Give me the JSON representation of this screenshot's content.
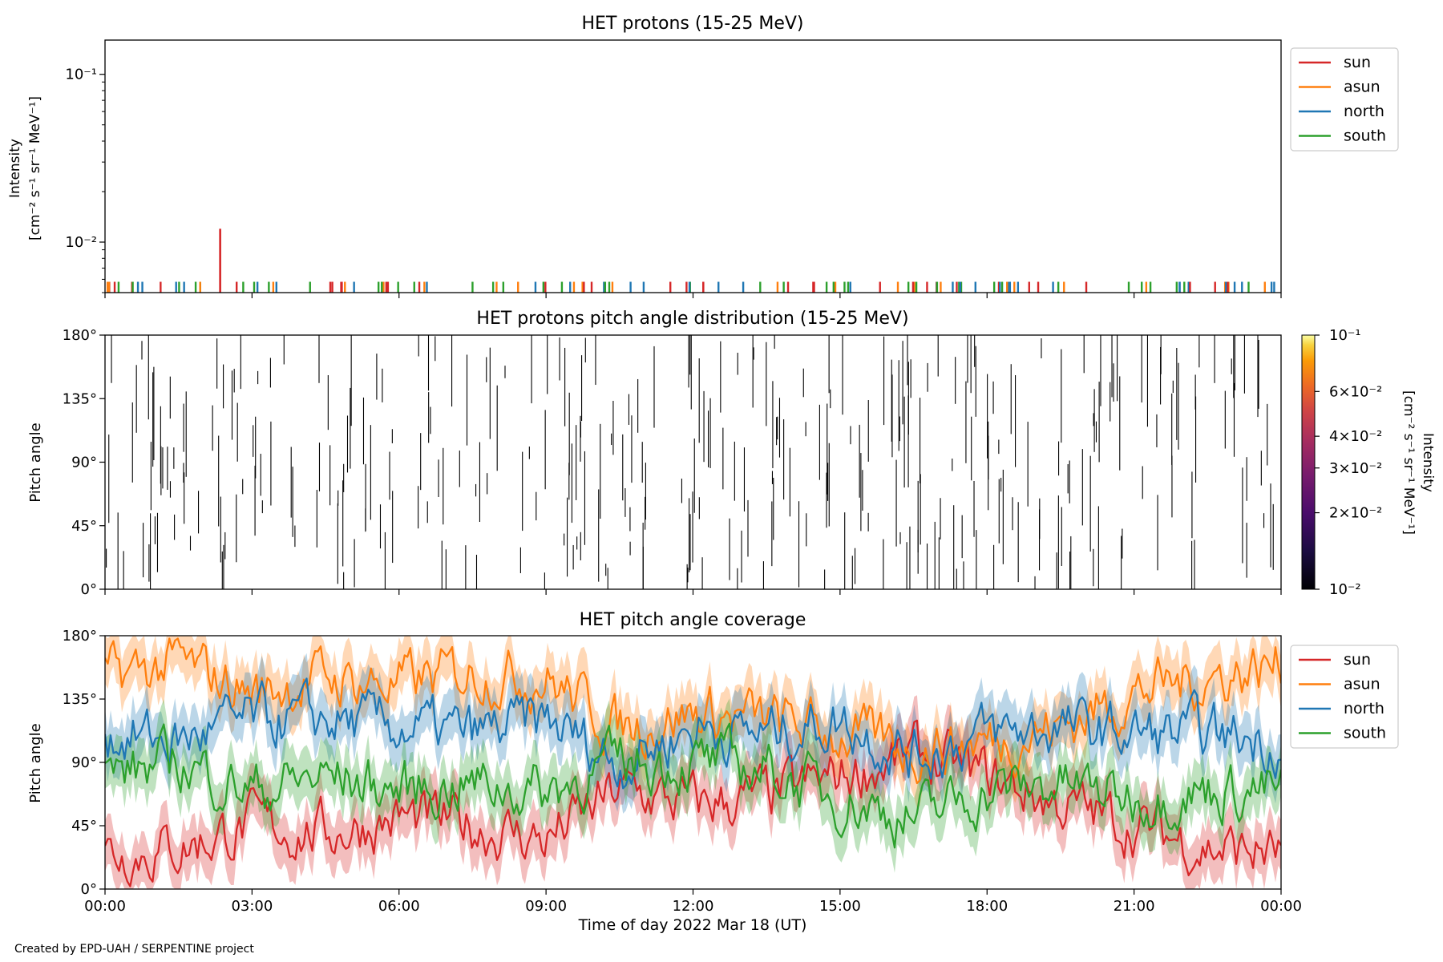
{
  "credit": "Created by EPD-UAH / SERPENTINE project",
  "colors": {
    "sun": "#d62728",
    "asun": "#ff7f0e",
    "north": "#1f77b4",
    "south": "#2ca02c"
  },
  "x_axis": {
    "label": "Time of day 2022 Mar 18 (UT)",
    "range_hours": [
      0,
      24
    ],
    "ticks": [
      {
        "hour": 0,
        "label": "00:00"
      },
      {
        "hour": 3,
        "label": "03:00"
      },
      {
        "hour": 6,
        "label": "06:00"
      },
      {
        "hour": 9,
        "label": "09:00"
      },
      {
        "hour": 12,
        "label": "12:00"
      },
      {
        "hour": 15,
        "label": "15:00"
      },
      {
        "hour": 18,
        "label": "18:00"
      },
      {
        "hour": 21,
        "label": "21:00"
      },
      {
        "hour": 24,
        "label": "00:00"
      }
    ]
  },
  "chart_data": [
    {
      "type": "line",
      "title": "HET protons (15-25 MeV)",
      "ylabel_line1": "Intensity",
      "ylabel_line2": "[cm⁻² s⁻¹ sr⁻¹ MeV⁻¹]",
      "yscale": "log",
      "ylim": [
        0.005,
        0.16
      ],
      "yticks": [
        {
          "value": 0.01,
          "label": "10⁻²"
        },
        {
          "value": 0.1,
          "label": "10⁻¹"
        }
      ],
      "legend_position": "outside-right-top",
      "series_names": [
        "sun",
        "asun",
        "north",
        "south"
      ],
      "baseline_value": 0.0058,
      "peak_event": {
        "series": "sun",
        "hour": 2.35,
        "value": 0.012
      }
    },
    {
      "type": "heatmap",
      "title": "HET protons pitch angle distribution (15-25 MeV)",
      "ylabel": "Pitch angle",
      "ylim": [
        0,
        180
      ],
      "yticks": [
        {
          "value": 0,
          "label": "0°"
        },
        {
          "value": 45,
          "label": "45°"
        },
        {
          "value": 90,
          "label": "90°"
        },
        {
          "value": 135,
          "label": "135°"
        },
        {
          "value": 180,
          "label": "180°"
        }
      ],
      "colorbar": {
        "label_line1": "Intensity",
        "label_line2": "[cm⁻² s⁻¹ sr⁻¹ MeV⁻¹]",
        "scale": "log",
        "range": [
          0.01,
          0.1
        ],
        "colormap": "inferno",
        "ticks": [
          {
            "value": 0.01,
            "label": "10⁻²"
          },
          {
            "value": 0.02,
            "label": "2×10⁻²"
          },
          {
            "value": 0.03,
            "label": "3×10⁻²"
          },
          {
            "value": 0.04,
            "label": "4×10⁻²"
          },
          {
            "value": 0.06,
            "label": "6×10⁻²"
          },
          {
            "value": 0.1,
            "label": "10⁻¹"
          }
        ]
      }
    },
    {
      "type": "line",
      "title": "HET pitch angle coverage",
      "ylabel": "Pitch angle",
      "ylim": [
        0,
        180
      ],
      "yticks": [
        {
          "value": 0,
          "label": "0°"
        },
        {
          "value": 45,
          "label": "45°"
        },
        {
          "value": 90,
          "label": "90°"
        },
        {
          "value": 135,
          "label": "135°"
        },
        {
          "value": 180,
          "label": "180°"
        }
      ],
      "legend_position": "outside-right-top",
      "band_halfwidth_deg": 18,
      "x_hours": [
        0,
        1.5,
        3,
        4.5,
        6,
        7.5,
        9,
        10.5,
        12,
        13.5,
        15,
        16.5,
        18,
        19.5,
        21,
        22.5,
        24
      ],
      "series": [
        {
          "name": "sun",
          "values": [
            25,
            30,
            45,
            40,
            50,
            45,
            35,
            70,
            60,
            65,
            80,
            95,
            80,
            60,
            45,
            30,
            25
          ]
        },
        {
          "name": "asun",
          "values": [
            150,
            160,
            140,
            150,
            145,
            155,
            150,
            115,
            125,
            120,
            110,
            100,
            105,
            115,
            140,
            150,
            160
          ]
        },
        {
          "name": "north",
          "values": [
            110,
            105,
            120,
            120,
            115,
            110,
            120,
            90,
            115,
            110,
            120,
            95,
            110,
            115,
            110,
            110,
            105
          ]
        },
        {
          "name": "south",
          "values": [
            80,
            90,
            70,
            80,
            70,
            75,
            70,
            90,
            90,
            85,
            65,
            50,
            70,
            75,
            65,
            70,
            70
          ]
        }
      ]
    }
  ]
}
